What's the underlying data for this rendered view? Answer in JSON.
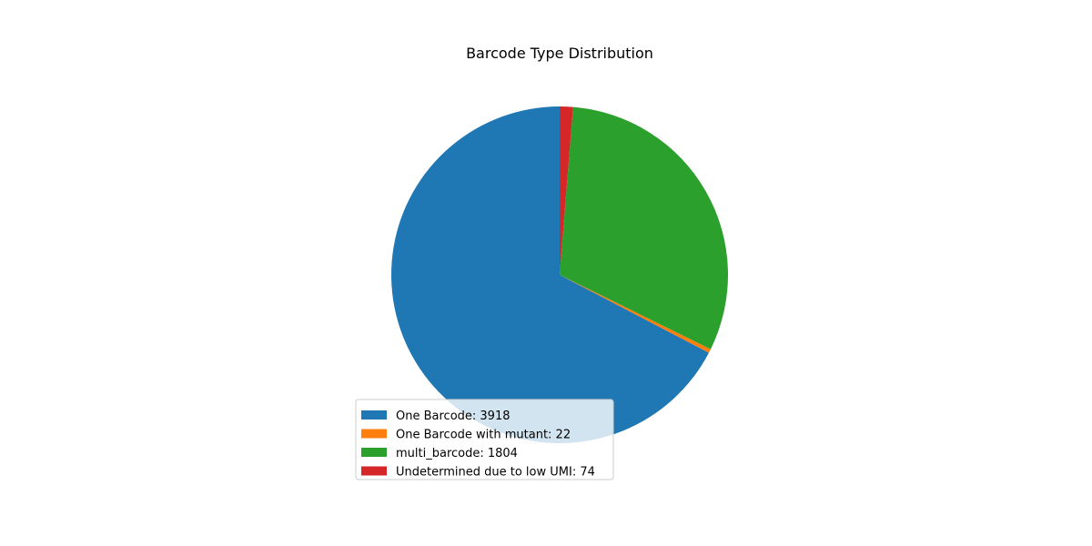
{
  "chart_data": {
    "type": "pie",
    "title": "Barcode Type Distribution",
    "start_angle_deg": 90,
    "direction": "counterclockwise",
    "legend_position": "lower-left",
    "slices": [
      {
        "label": "One Barcode",
        "value": 3918,
        "color": "#1f77b4",
        "legend": "One Barcode: 3918"
      },
      {
        "label": "One Barcode with mutant",
        "value": 22,
        "color": "#ff7f0e",
        "legend": "One Barcode with mutant: 22"
      },
      {
        "label": "multi_barcode",
        "value": 1804,
        "color": "#2ca02c",
        "legend": "multi_barcode: 1804"
      },
      {
        "label": "Undetermined due to low UMI",
        "value": 74,
        "color": "#d62728",
        "legend": "Undetermined due to low UMI: 74"
      }
    ]
  }
}
